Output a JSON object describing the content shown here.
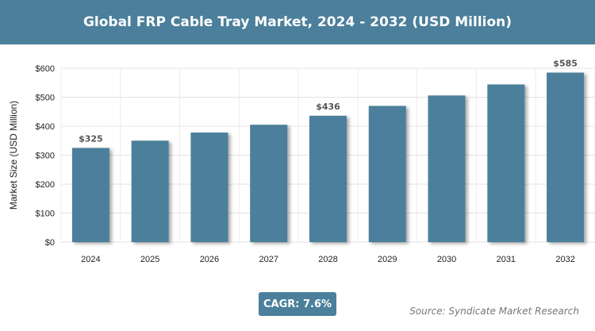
{
  "header": {
    "title": "Global FRP Cable Tray Market, 2024 - 2032 (USD Million)"
  },
  "cagr": "CAGR: 7.6%",
  "source": "Source: Syndicate Market Research",
  "chart_data": {
    "type": "bar",
    "title": "Global FRP Cable Tray Market, 2024 - 2032 (USD Million)",
    "ylabel": "Market Size (USD Million)",
    "xlabel": "",
    "categories": [
      "2024",
      "2025",
      "2026",
      "2027",
      "2028",
      "2029",
      "2030",
      "2031",
      "2032"
    ],
    "values": [
      325,
      350,
      378,
      405,
      436,
      470,
      506,
      544,
      585
    ],
    "data_labels": {
      "2024": "$325",
      "2028": "$436",
      "2032": "$585"
    },
    "ylim": [
      0,
      600
    ],
    "yticks": [
      0,
      100,
      200,
      300,
      400,
      500,
      600
    ],
    "ytick_labels": [
      "$0",
      "$100",
      "$200",
      "$300",
      "$400",
      "$500",
      "$600"
    ],
    "grid": true,
    "bar_color": "#4b7f9b"
  }
}
